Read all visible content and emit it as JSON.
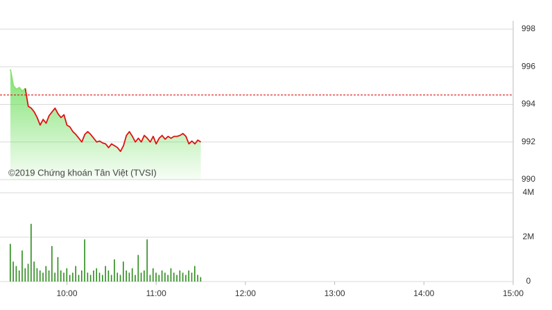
{
  "chart_data": [
    {
      "type": "line",
      "area": true,
      "x": [
        "09:22",
        "09:24",
        "09:26",
        "09:28",
        "09:30",
        "09:32",
        "09:34",
        "09:36",
        "09:38",
        "09:40",
        "09:42",
        "09:44",
        "09:46",
        "09:48",
        "09:50",
        "09:52",
        "09:54",
        "09:56",
        "09:58",
        "10:00",
        "10:02",
        "10:04",
        "10:06",
        "10:08",
        "10:10",
        "10:12",
        "10:14",
        "10:16",
        "10:18",
        "10:20",
        "10:22",
        "10:24",
        "10:26",
        "10:28",
        "10:30",
        "10:32",
        "10:34",
        "10:36",
        "10:38",
        "10:40",
        "10:42",
        "10:44",
        "10:46",
        "10:48",
        "10:50",
        "10:52",
        "10:54",
        "10:56",
        "10:58",
        "11:00",
        "11:02",
        "11:04",
        "11:06",
        "11:08",
        "11:10",
        "11:12",
        "11:14",
        "11:16",
        "11:18",
        "11:20",
        "11:22",
        "11:24",
        "11:26",
        "11:28",
        "11:30"
      ],
      "values": [
        995.86,
        995.0,
        994.8,
        994.9,
        994.7,
        994.85,
        993.9,
        993.8,
        993.6,
        993.3,
        992.9,
        993.2,
        993.0,
        993.4,
        993.6,
        993.8,
        993.5,
        993.3,
        993.45,
        992.9,
        992.8,
        992.55,
        992.4,
        992.2,
        992.0,
        992.4,
        992.55,
        992.4,
        992.2,
        992.0,
        992.05,
        991.95,
        991.9,
        991.7,
        991.9,
        991.8,
        991.7,
        991.5,
        991.8,
        992.35,
        992.55,
        992.3,
        992.0,
        992.2,
        992.0,
        992.35,
        992.2,
        992.0,
        992.3,
        991.9,
        992.2,
        992.35,
        992.15,
        992.3,
        992.2,
        992.3,
        992.3,
        992.35,
        992.45,
        992.3,
        991.9,
        992.05,
        991.9,
        992.1,
        992.0
      ],
      "color": "#e01010",
      "above_color": "#88e070",
      "area_color": "#66dd55",
      "reference_line": 994.5,
      "reference_color": "#e01010",
      "xlim": [
        "09:15",
        "15:00"
      ],
      "ylim": [
        990,
        998
      ],
      "yticks": [
        990,
        992,
        994,
        996,
        998
      ],
      "grid": true,
      "annotation": "©2019 Chứng khoán Tân Việt (TVSI)"
    },
    {
      "type": "bar",
      "x": [
        "09:22",
        "09:24",
        "09:26",
        "09:28",
        "09:30",
        "09:32",
        "09:34",
        "09:36",
        "09:38",
        "09:40",
        "09:42",
        "09:44",
        "09:46",
        "09:48",
        "09:50",
        "09:52",
        "09:54",
        "09:56",
        "09:58",
        "10:00",
        "10:02",
        "10:04",
        "10:06",
        "10:08",
        "10:10",
        "10:12",
        "10:14",
        "10:16",
        "10:18",
        "10:20",
        "10:22",
        "10:24",
        "10:26",
        "10:28",
        "10:30",
        "10:32",
        "10:34",
        "10:36",
        "10:38",
        "10:40",
        "10:42",
        "10:44",
        "10:46",
        "10:48",
        "10:50",
        "10:52",
        "10:54",
        "10:56",
        "10:58",
        "11:00",
        "11:02",
        "11:04",
        "11:06",
        "11:08",
        "11:10",
        "11:12",
        "11:14",
        "11:16",
        "11:18",
        "11:20",
        "11:22",
        "11:24",
        "11:26",
        "11:28",
        "11:30"
      ],
      "values": [
        1700000,
        900000,
        700000,
        500000,
        1400000,
        600000,
        800000,
        2600000,
        900000,
        600000,
        500000,
        400000,
        700000,
        500000,
        1600000,
        400000,
        1100000,
        500000,
        400000,
        600000,
        300000,
        400000,
        700000,
        300000,
        500000,
        1900000,
        400000,
        300000,
        500000,
        600000,
        400000,
        300000,
        700000,
        500000,
        300000,
        1000000,
        400000,
        300000,
        900000,
        500000,
        400000,
        600000,
        300000,
        1200000,
        400000,
        500000,
        1900000,
        300000,
        600000,
        400000,
        300000,
        500000,
        400000,
        300000,
        600000,
        400000,
        300000,
        500000,
        400000,
        300000,
        500000,
        400000,
        700000,
        300000,
        200000
      ],
      "color": "#2a8a1a",
      "xlim": [
        "09:15",
        "15:00"
      ],
      "xticks": [
        "10:00",
        "11:00",
        "12:00",
        "13:00",
        "14:00",
        "15:00"
      ],
      "ylim": [
        0,
        4000000
      ],
      "yticks": [
        0,
        {
          "value": 2000000,
          "label": "2M"
        },
        {
          "value": 4000000,
          "label": "4M"
        }
      ],
      "grid": true
    }
  ]
}
